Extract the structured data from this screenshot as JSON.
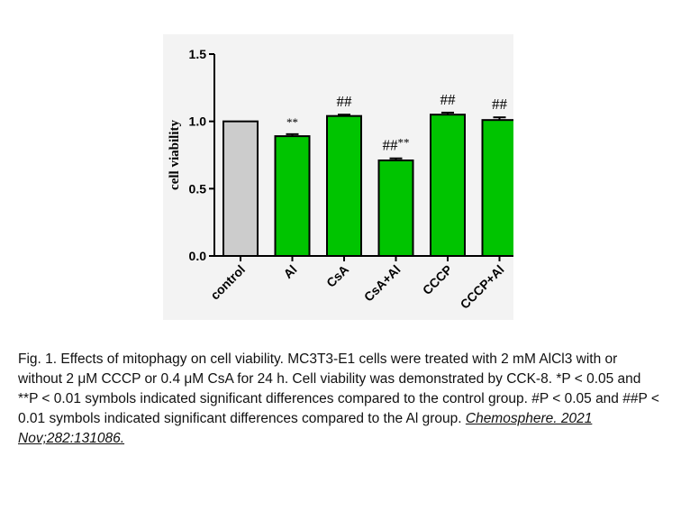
{
  "colors": {
    "control_bar": "#cccccc",
    "treatment_bar": "#00c400",
    "bar_outline": "#000000",
    "panel_background": "#f3f3f3"
  },
  "chart_data": {
    "type": "bar",
    "ylabel": "cell viability",
    "ylim": [
      0,
      1.5
    ],
    "yticks": [
      "0.0",
      "0.5",
      "1.0",
      "1.5"
    ],
    "categories": [
      "control",
      "Al",
      "CsA",
      "CsA+Al",
      "CCCP",
      "CCCP+Al"
    ],
    "values": [
      1.0,
      0.89,
      1.04,
      0.71,
      1.05,
      1.01
    ],
    "errors": [
      0.0,
      0.015,
      0.01,
      0.015,
      0.015,
      0.02
    ],
    "annotations": [
      "",
      "**",
      "##",
      "##**",
      "##",
      "##"
    ],
    "grid": false,
    "legend": "none"
  },
  "caption": {
    "text": "Fig. 1. Effects of mitophagy on cell viability. MC3T3-E1 cells were treated with 2 mM AlCl3 with or without 2 μM CCCP or 0.4 μM CsA for 24 h. Cell viability was demonstrated by CCK-8. *P < 0.05 and **P < 0.01 symbols indicated significant differences compared to the control group. #P < 0.05 and ##P < 0.01 symbols indicated significant differences compared to the Al group.",
    "citation": "Chemosphere. 2021 Nov;282:131086."
  }
}
